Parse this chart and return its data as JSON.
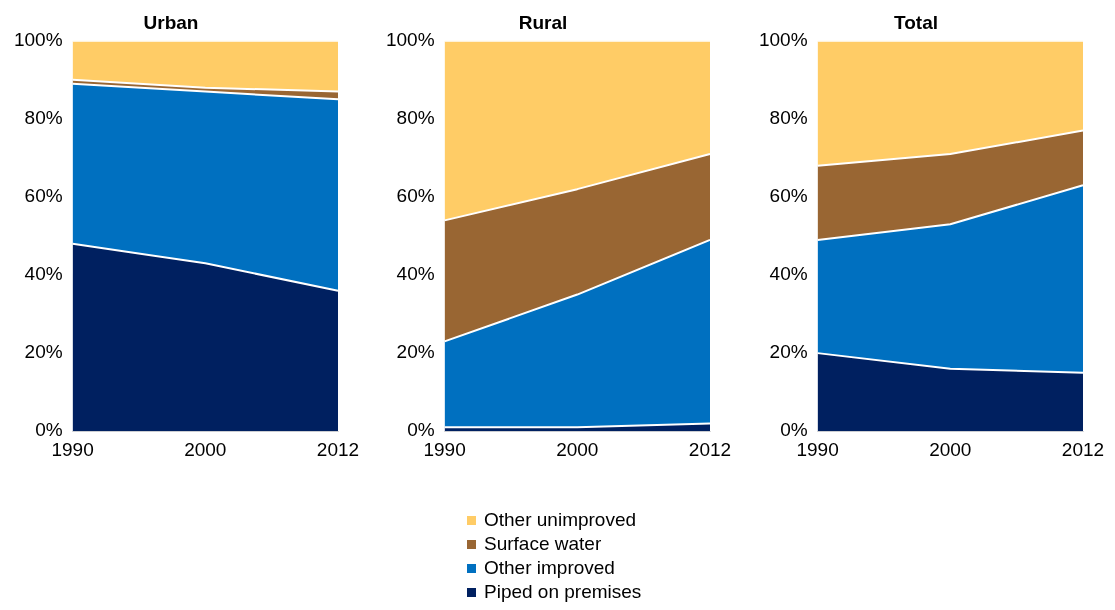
{
  "chart_data": [
    {
      "type": "area",
      "title": "Urban",
      "stacked": true,
      "categories": [
        "1990",
        "2000",
        "2012"
      ],
      "ylim": [
        0,
        100
      ],
      "yticks": [
        {
          "value": 0,
          "label": "0%"
        },
        {
          "value": 20,
          "label": "20%"
        },
        {
          "value": 40,
          "label": "40%"
        },
        {
          "value": 60,
          "label": "60%"
        },
        {
          "value": 80,
          "label": "80%"
        },
        {
          "value": 100,
          "label": "100%"
        }
      ],
      "grid": false,
      "legend": false,
      "series": [
        {
          "color": "#002060",
          "values": [
            48,
            43,
            36
          ]
        },
        {
          "color": "#0070c0",
          "values": [
            41,
            44,
            49
          ]
        },
        {
          "color": "#996633",
          "values": [
            1,
            1,
            2
          ]
        },
        {
          "color": "#ffcc66",
          "values": [
            10,
            12,
            13
          ]
        }
      ]
    },
    {
      "type": "area",
      "title": "Rural",
      "stacked": true,
      "categories": [
        "1990",
        "2000",
        "2012"
      ],
      "ylim": [
        0,
        100
      ],
      "yticks": [
        {
          "value": 0,
          "label": "0%"
        },
        {
          "value": 20,
          "label": "20%"
        },
        {
          "value": 40,
          "label": "40%"
        },
        {
          "value": 60,
          "label": "60%"
        },
        {
          "value": 80,
          "label": "80%"
        },
        {
          "value": 100,
          "label": "100%"
        }
      ],
      "grid": false,
      "legend": "bottom",
      "series": [
        {
          "name": "Piped on premises",
          "color": "#002060",
          "values": [
            1,
            1,
            2
          ]
        },
        {
          "name": "Other improved",
          "color": "#0070c0",
          "values": [
            22,
            34,
            47
          ]
        },
        {
          "name": "Surface water",
          "color": "#996633",
          "values": [
            31,
            27,
            22
          ]
        },
        {
          "name": "Other unimproved",
          "color": "#ffcc66",
          "values": [
            46,
            38,
            29
          ]
        }
      ]
    },
    {
      "type": "area",
      "title": "Total",
      "stacked": true,
      "categories": [
        "1990",
        "2000",
        "2012"
      ],
      "ylim": [
        0,
        100
      ],
      "yticks": [
        {
          "value": 0,
          "label": "0%"
        },
        {
          "value": 20,
          "label": "20%"
        },
        {
          "value": 40,
          "label": "40%"
        },
        {
          "value": 60,
          "label": "60%"
        },
        {
          "value": 80,
          "label": "80%"
        },
        {
          "value": 100,
          "label": "100%"
        }
      ],
      "grid": false,
      "legend": false,
      "series": [
        {
          "color": "#002060",
          "values": [
            20,
            16,
            15
          ]
        },
        {
          "color": "#0070c0",
          "values": [
            29,
            37,
            48
          ]
        },
        {
          "color": "#996633",
          "values": [
            19,
            18,
            14
          ]
        },
        {
          "color": "#ffcc66",
          "values": [
            32,
            29,
            23
          ]
        }
      ]
    }
  ]
}
